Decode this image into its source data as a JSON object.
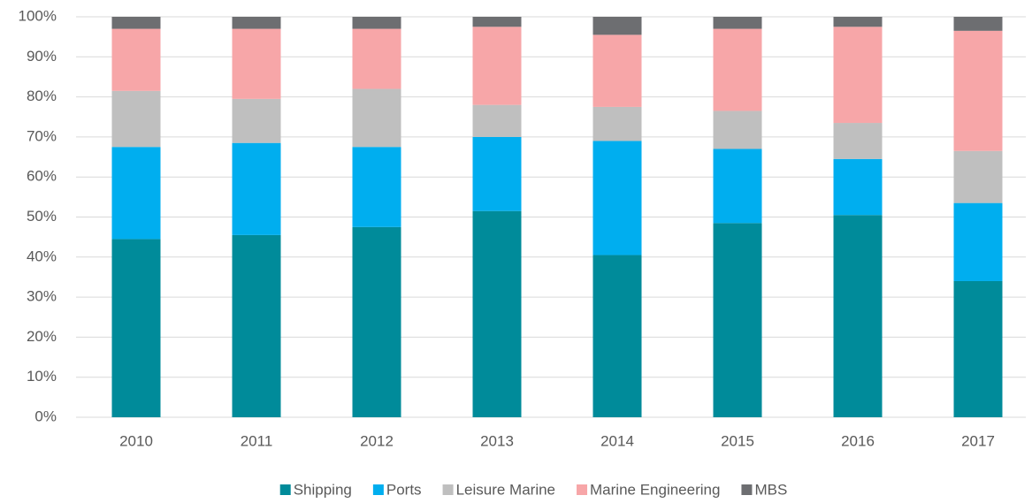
{
  "chart_data": {
    "type": "stacked_bar",
    "categories": [
      "2010",
      "2011",
      "2012",
      "2013",
      "2014",
      "2015",
      "2016",
      "2017"
    ],
    "series": [
      {
        "name": "Shipping",
        "color": "#008b9a",
        "values": [
          44.5,
          45.5,
          47.5,
          51.5,
          40.5,
          48.5,
          50.5,
          34
        ]
      },
      {
        "name": "Ports",
        "color": "#00aeef",
        "values": [
          23,
          23,
          20,
          18.5,
          28.5,
          18.5,
          14,
          19.5
        ]
      },
      {
        "name": "Leisure Marine",
        "color": "#bfbfbf",
        "values": [
          14,
          11,
          14.5,
          8,
          8.5,
          9.5,
          9,
          13
        ]
      },
      {
        "name": "Marine Engineering",
        "color": "#f7a6a8",
        "values": [
          15.5,
          17.5,
          15,
          19.5,
          18,
          20.5,
          24,
          30
        ]
      },
      {
        "name": "MBS",
        "color": "#6d6e71",
        "values": [
          3,
          3,
          3,
          2.5,
          4.5,
          3,
          2.5,
          3.5
        ]
      }
    ],
    "ylim": [
      0,
      100
    ],
    "yticks": [
      {
        "value": 0,
        "label": "0%"
      },
      {
        "value": 10,
        "label": "10%"
      },
      {
        "value": 20,
        "label": "20%"
      },
      {
        "value": 30,
        "label": "30%"
      },
      {
        "value": 40,
        "label": "40%"
      },
      {
        "value": 50,
        "label": "50%"
      },
      {
        "value": 60,
        "label": "60%"
      },
      {
        "value": 70,
        "label": "70%"
      },
      {
        "value": 80,
        "label": "80%"
      },
      {
        "value": 90,
        "label": "90%"
      },
      {
        "value": 100,
        "label": "100%"
      }
    ],
    "grid": true,
    "legend": "bottom"
  }
}
